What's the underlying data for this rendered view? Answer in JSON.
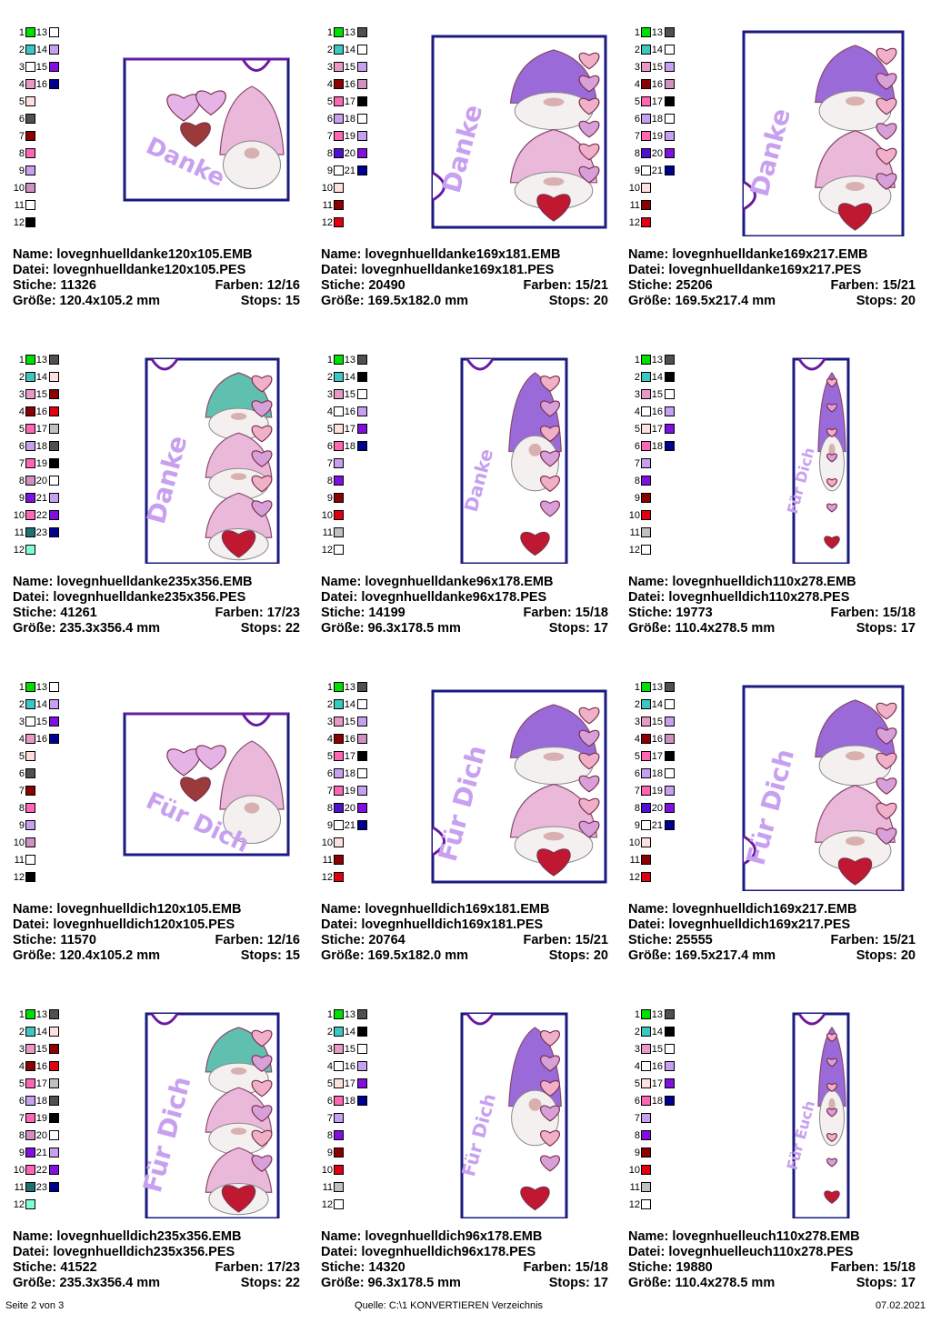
{
  "labels": {
    "name": "Name:",
    "datei": "Datei:",
    "stiche": "Stiche:",
    "farben": "Farben:",
    "groesse": "Größe:",
    "stops": "Stops:"
  },
  "footer": {
    "page": "Seite 2 von 3",
    "source": "Quelle: C:\\1 KONVERTIEREN Verzeichnis",
    "date": "07.02.2021"
  },
  "colors": {
    "green": "#00e000",
    "teal": "#3cc8c0",
    "white": "#ffffff",
    "pink": "#e899c8",
    "lightpink": "#ffe0e0",
    "darkgray": "#505050",
    "darkred": "#8b0000",
    "hotpink": "#ff66b3",
    "lilac": "#c8a0f0",
    "mauve": "#d090c0",
    "purple": "#7a20d0",
    "navy": "#000090",
    "black": "#000000",
    "red": "#e00010",
    "darkteal": "#207070",
    "mint": "#80ffd0",
    "gray": "#c0c0c0",
    "lavender": "#b890f0",
    "violet": "#8010e0",
    "blueviolet": "#5010d0",
    "salmon": "#f0c8c0"
  },
  "designs": [
    {
      "name": "lovegnhuelldanke120x105.EMB",
      "file": "lovegnhuelldanke120x105.PES",
      "stitches": "11326",
      "colors": "12/16",
      "size": "120.4x105.2 mm",
      "stops": "15",
      "text": "Danke",
      "shape": "square",
      "palette": [
        "green",
        "teal",
        "white",
        "pink",
        "lightpink",
        "darkgray",
        "darkred",
        "hotpink",
        "lilac",
        "mauve",
        "white",
        "black",
        "white",
        "lilac",
        "violet",
        "navy"
      ]
    },
    {
      "name": "lovegnhuelldanke169x181.EMB",
      "file": "lovegnhuelldanke169x181.PES",
      "stitches": "20490",
      "colors": "15/21",
      "size": "169.5x182.0 mm",
      "stops": "20",
      "text": "Danke",
      "shape": "wide",
      "palette": [
        "green",
        "teal",
        "pink",
        "darkred",
        "hotpink",
        "lilac",
        "hotpink",
        "blueviolet",
        "white",
        "lightpink",
        "darkred",
        "red",
        "darkgray",
        "white",
        "lilac",
        "mauve",
        "black",
        "white",
        "lilac",
        "violet",
        "navy"
      ]
    },
    {
      "name": "lovegnhuelldanke169x217.EMB",
      "file": "lovegnhuelldanke169x217.PES",
      "stitches": "25206",
      "colors": "15/21",
      "size": "169.5x217.4 mm",
      "stops": "20",
      "text": "Danke",
      "shape": "tall",
      "palette": [
        "green",
        "teal",
        "pink",
        "darkred",
        "hotpink",
        "lilac",
        "hotpink",
        "blueviolet",
        "white",
        "lightpink",
        "darkred",
        "red",
        "darkgray",
        "white",
        "lilac",
        "mauve",
        "black",
        "white",
        "lilac",
        "violet",
        "navy"
      ]
    },
    {
      "name": "lovegnhuelldanke235x356.EMB",
      "file": "lovegnhuelldanke235x356.PES",
      "stitches": "41261",
      "colors": "17/23",
      "size": "235.3x356.4 mm",
      "stops": "22",
      "text": "Danke",
      "shape": "big",
      "palette": [
        "green",
        "teal",
        "pink",
        "darkred",
        "hotpink",
        "lilac",
        "hotpink",
        "mauve",
        "violet",
        "hotpink",
        "darkteal",
        "mint",
        "darkgray",
        "lightpink",
        "darkred",
        "red",
        "gray",
        "darkgray",
        "black",
        "white",
        "lilac",
        "violet",
        "navy"
      ]
    },
    {
      "name": "lovegnhuelldanke96x178.EMB",
      "file": "lovegnhuelldanke96x178.PES",
      "stitches": "14199",
      "colors": "15/18",
      "size": "96.3x178.5 mm",
      "stops": "17",
      "text": "Danke",
      "shape": "narrow",
      "palette": [
        "green",
        "teal",
        "pink",
        "white",
        "lightpink",
        "hotpink",
        "lilac",
        "violet",
        "darkred",
        "red",
        "gray",
        "white",
        "darkgray",
        "black",
        "white",
        "lilac",
        "violet",
        "navy"
      ]
    },
    {
      "name": "lovegnhuelldich110x278.EMB",
      "file": "lovegnhuelldich110x278.PES",
      "stitches": "19773",
      "colors": "15/18",
      "size": "110.4x278.5 mm",
      "stops": "17",
      "text": "Für Dich",
      "shape": "slim",
      "palette": [
        "green",
        "teal",
        "pink",
        "white",
        "lightpink",
        "hotpink",
        "lilac",
        "violet",
        "darkred",
        "red",
        "gray",
        "white",
        "darkgray",
        "black",
        "white",
        "lilac",
        "violet",
        "navy"
      ]
    },
    {
      "name": "lovegnhuelldich120x105.EMB",
      "file": "lovegnhuelldich120x105.PES",
      "stitches": "11570",
      "colors": "12/16",
      "size": "120.4x105.2 mm",
      "stops": "15",
      "text": "Für Dich",
      "shape": "square",
      "palette": [
        "green",
        "teal",
        "white",
        "pink",
        "lightpink",
        "darkgray",
        "darkred",
        "hotpink",
        "lilac",
        "mauve",
        "white",
        "black",
        "white",
        "lilac",
        "violet",
        "navy"
      ]
    },
    {
      "name": "lovegnhuelldich169x181.EMB",
      "file": "lovegnhuelldich169x181.PES",
      "stitches": "20764",
      "colors": "15/21",
      "size": "169.5x182.0 mm",
      "stops": "20",
      "text": "Für Dich",
      "shape": "wide",
      "palette": [
        "green",
        "teal",
        "pink",
        "darkred",
        "hotpink",
        "lilac",
        "hotpink",
        "blueviolet",
        "white",
        "lightpink",
        "darkred",
        "red",
        "darkgray",
        "white",
        "lilac",
        "mauve",
        "black",
        "white",
        "lilac",
        "violet",
        "navy"
      ]
    },
    {
      "name": "lovegnhuelldich169x217.EMB",
      "file": "lovegnhuelldich169x217.PES",
      "stitches": "25555",
      "colors": "15/21",
      "size": "169.5x217.4 mm",
      "stops": "20",
      "text": "Für Dich",
      "shape": "tall",
      "palette": [
        "green",
        "teal",
        "pink",
        "darkred",
        "hotpink",
        "lilac",
        "hotpink",
        "blueviolet",
        "white",
        "lightpink",
        "darkred",
        "red",
        "darkgray",
        "white",
        "lilac",
        "mauve",
        "black",
        "white",
        "lilac",
        "violet",
        "navy"
      ]
    },
    {
      "name": "lovegnhuelldich235x356.EMB",
      "file": "lovegnhuelldich235x356.PES",
      "stitches": "41522",
      "colors": "17/23",
      "size": "235.3x356.4 mm",
      "stops": "22",
      "text": "Für Dich",
      "shape": "big",
      "palette": [
        "green",
        "teal",
        "pink",
        "darkred",
        "hotpink",
        "lilac",
        "hotpink",
        "mauve",
        "violet",
        "hotpink",
        "darkteal",
        "mint",
        "darkgray",
        "lightpink",
        "darkred",
        "red",
        "gray",
        "darkgray",
        "black",
        "white",
        "lilac",
        "violet",
        "navy"
      ]
    },
    {
      "name": "lovegnhuelldich96x178.EMB",
      "file": "lovegnhuelldich96x178.PES",
      "stitches": "14320",
      "colors": "15/18",
      "size": "96.3x178.5 mm",
      "stops": "17",
      "text": "Für Dich",
      "shape": "narrow",
      "palette": [
        "green",
        "teal",
        "pink",
        "white",
        "lightpink",
        "hotpink",
        "lilac",
        "violet",
        "darkred",
        "red",
        "gray",
        "white",
        "darkgray",
        "black",
        "white",
        "lilac",
        "violet",
        "navy"
      ]
    },
    {
      "name": "lovegnhuelleuch110x278.EMB",
      "file": "lovegnhuelleuch110x278.PES",
      "stitches": "19880",
      "colors": "15/18",
      "size": "110.4x278.5 mm",
      "stops": "17",
      "text": "Für Euch",
      "shape": "slim",
      "palette": [
        "green",
        "teal",
        "pink",
        "white",
        "lightpink",
        "hotpink",
        "lilac",
        "violet",
        "darkred",
        "red",
        "gray",
        "white",
        "darkgray",
        "black",
        "white",
        "lilac",
        "violet",
        "navy"
      ]
    }
  ]
}
